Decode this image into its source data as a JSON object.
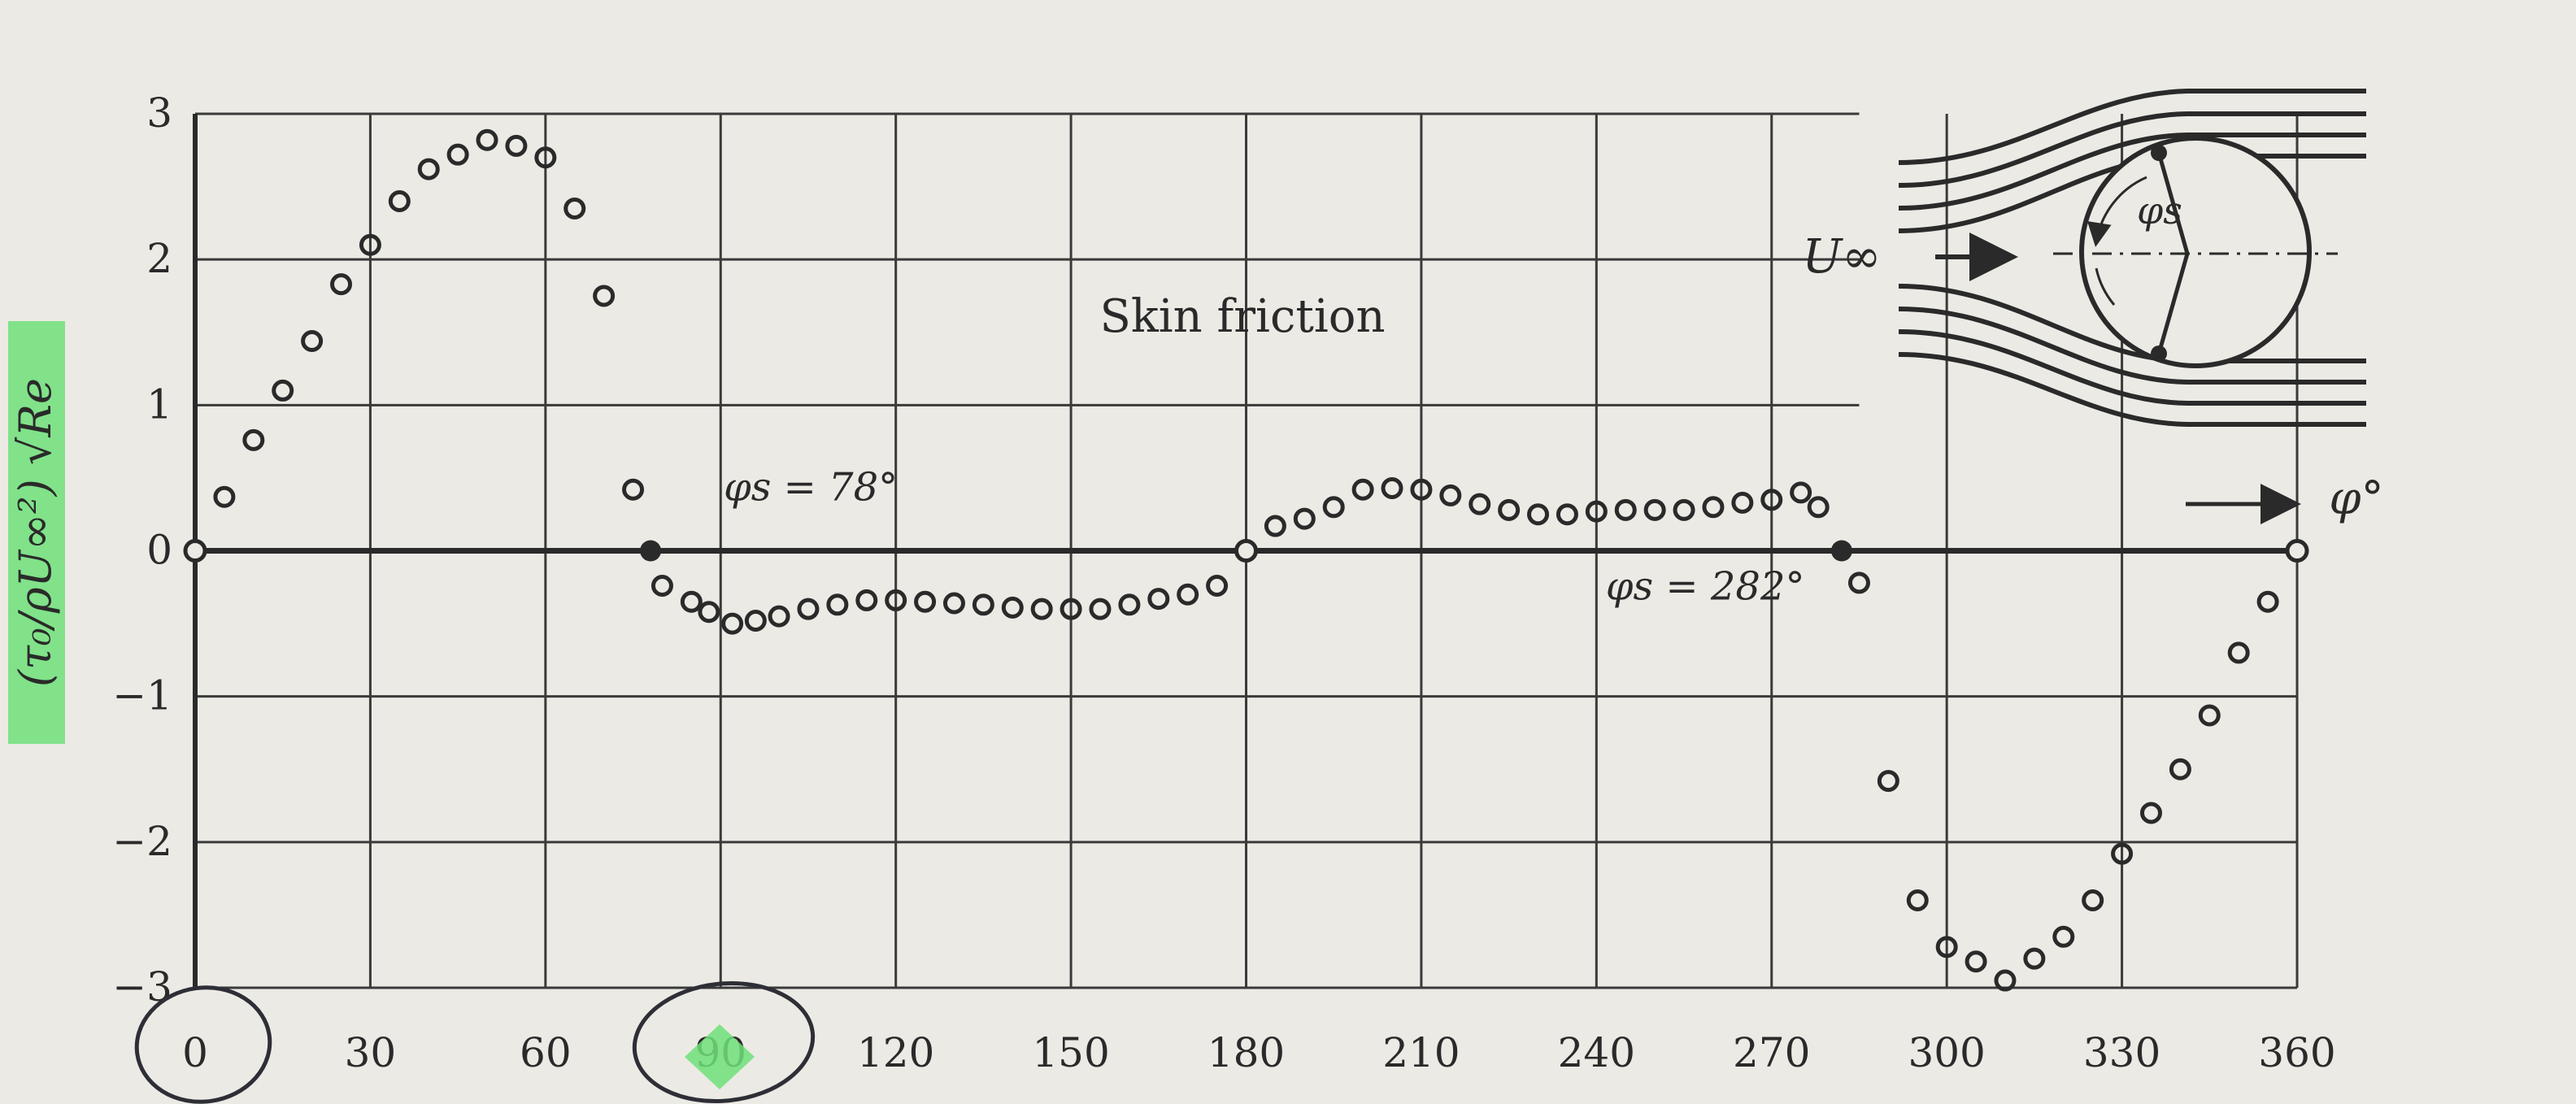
{
  "chart_data": {
    "type": "scatter",
    "title": "Skin friction",
    "ylabel": "(τ₀/ρU∞²) √Re",
    "xlabel": "φ°",
    "xlim": [
      0,
      360
    ],
    "ylim": [
      -3,
      3
    ],
    "x_ticks": [
      "0",
      "30",
      "60",
      "90",
      "120",
      "150",
      "180",
      "210",
      "240",
      "270",
      "300",
      "330",
      "360"
    ],
    "y_ticks": [
      "3",
      "2",
      "1",
      "0",
      "−1",
      "−2",
      "−3"
    ],
    "grid": true,
    "annotations": [
      {
        "text": "φs = 78°",
        "x": 78,
        "y": 0
      },
      {
        "text": "φs = 282°",
        "x": 282,
        "y": 0
      }
    ],
    "separation_points": [
      {
        "x": 78,
        "y": 0
      },
      {
        "x": 282,
        "y": 0
      }
    ],
    "stagnation_points": [
      {
        "x": 0,
        "y": 0
      },
      {
        "x": 180,
        "y": 0
      },
      {
        "x": 360,
        "y": 0
      }
    ],
    "series": [
      {
        "points": [
          [
            5,
            0.37
          ],
          [
            10,
            0.76
          ],
          [
            15,
            1.1
          ],
          [
            20,
            1.44
          ],
          [
            25,
            1.83
          ],
          [
            30,
            2.1
          ],
          [
            35,
            2.4
          ],
          [
            40,
            2.62
          ],
          [
            45,
            2.72
          ],
          [
            50,
            2.82
          ],
          [
            55,
            2.78
          ],
          [
            60,
            2.7
          ],
          [
            65,
            2.35
          ],
          [
            70,
            1.75
          ],
          [
            75,
            0.42
          ],
          [
            80,
            -0.24
          ],
          [
            85,
            -0.35
          ],
          [
            88,
            -0.42
          ],
          [
            92,
            -0.5
          ],
          [
            96,
            -0.48
          ],
          [
            100,
            -0.45
          ],
          [
            105,
            -0.4
          ],
          [
            110,
            -0.37
          ],
          [
            115,
            -0.34
          ],
          [
            120,
            -0.34
          ],
          [
            125,
            -0.35
          ],
          [
            130,
            -0.36
          ],
          [
            135,
            -0.37
          ],
          [
            140,
            -0.39
          ],
          [
            145,
            -0.4
          ],
          [
            150,
            -0.4
          ],
          [
            155,
            -0.4
          ],
          [
            160,
            -0.37
          ],
          [
            165,
            -0.33
          ],
          [
            170,
            -0.3
          ],
          [
            175,
            -0.24
          ],
          [
            185,
            0.17
          ],
          [
            190,
            0.22
          ],
          [
            195,
            0.3
          ],
          [
            200,
            0.42
          ],
          [
            205,
            0.43
          ],
          [
            210,
            0.42
          ],
          [
            215,
            0.38
          ],
          [
            220,
            0.32
          ],
          [
            225,
            0.28
          ],
          [
            230,
            0.25
          ],
          [
            235,
            0.25
          ],
          [
            240,
            0.27
          ],
          [
            245,
            0.28
          ],
          [
            250,
            0.28
          ],
          [
            255,
            0.28
          ],
          [
            260,
            0.3
          ],
          [
            265,
            0.33
          ],
          [
            270,
            0.35
          ],
          [
            275,
            0.4
          ],
          [
            278,
            0.3
          ],
          [
            285,
            -0.22
          ],
          [
            290,
            -1.58
          ],
          [
            295,
            -2.4
          ],
          [
            300,
            -2.72
          ],
          [
            305,
            -2.82
          ],
          [
            310,
            -2.95
          ],
          [
            315,
            -2.8
          ],
          [
            320,
            -2.65
          ],
          [
            325,
            -2.4
          ],
          [
            330,
            -2.08
          ],
          [
            335,
            -1.8
          ],
          [
            340,
            -1.5
          ],
          [
            345,
            -1.13
          ],
          [
            350,
            -0.7
          ],
          [
            355,
            -0.35
          ]
        ]
      }
    ]
  },
  "inset": {
    "free_stream_label": "U∞",
    "angle_label": "φs"
  }
}
